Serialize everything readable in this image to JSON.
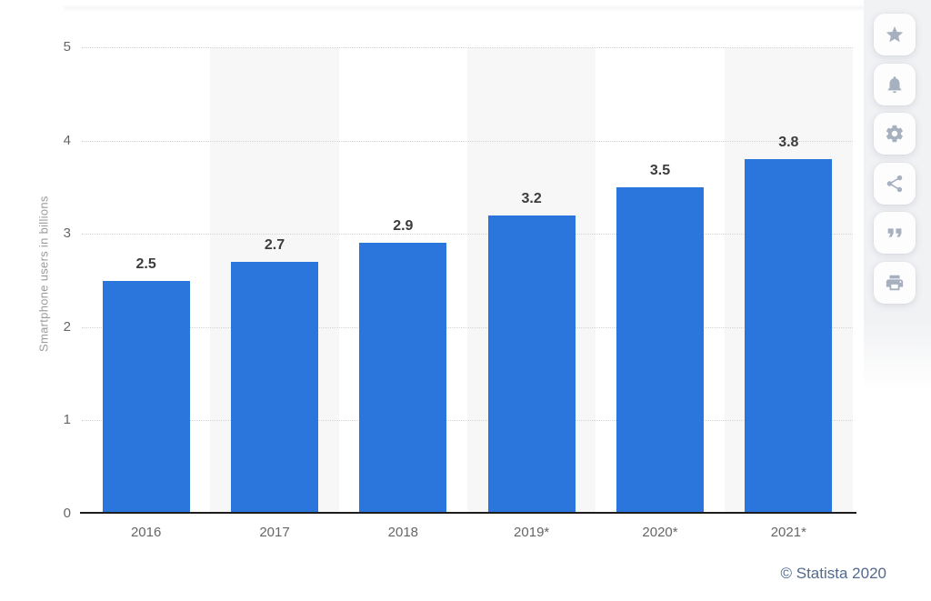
{
  "chart_data": {
    "type": "bar",
    "categories": [
      "2016",
      "2017",
      "2018",
      "2019*",
      "2020*",
      "2021*"
    ],
    "values": [
      2.5,
      2.7,
      2.9,
      3.2,
      3.5,
      3.8
    ],
    "value_labels": [
      "2.5",
      "2.7",
      "2.9",
      "3.2",
      "3.5",
      "3.8"
    ],
    "title": "",
    "xlabel": "",
    "ylabel": "Smartphone users in billions",
    "ylim": [
      0,
      5
    ],
    "yticks": [
      0,
      1,
      2,
      3,
      4,
      5
    ],
    "grid": "horizontal-dotted",
    "legend": "none",
    "bar_color": "#2b76dd",
    "alt_band_color": "#f7f7f7"
  },
  "sidebar": {
    "buttons": [
      {
        "label": "favorite",
        "icon": "star-icon"
      },
      {
        "label": "notifications",
        "icon": "bell-icon"
      },
      {
        "label": "settings",
        "icon": "gear-icon"
      },
      {
        "label": "share",
        "icon": "share-icon"
      },
      {
        "label": "cite",
        "icon": "quote-icon"
      },
      {
        "label": "print",
        "icon": "printer-icon"
      }
    ]
  },
  "footer": {
    "copyright": "© Statista 2020"
  },
  "colors": {
    "bar": "#2b76dd",
    "band": "#f7f7f7",
    "rail_background": "#f1f2f4",
    "icon": "#a6b0bf",
    "grid": "#d4d4d4",
    "axis": "#1d1d1d",
    "tick_text": "#666666",
    "value_text": "#3c3c3c",
    "copyright_text": "#54698c"
  }
}
